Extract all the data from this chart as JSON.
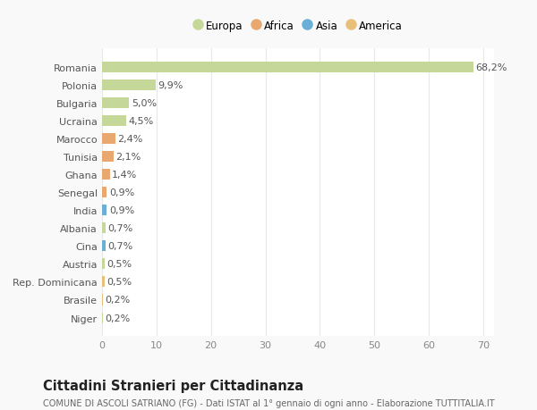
{
  "categories": [
    "Niger",
    "Brasile",
    "Rep. Dominicana",
    "Austria",
    "Cina",
    "Albania",
    "India",
    "Senegal",
    "Ghana",
    "Tunisia",
    "Marocco",
    "Ucraina",
    "Bulgaria",
    "Polonia",
    "Romania"
  ],
  "values": [
    0.2,
    0.2,
    0.5,
    0.5,
    0.7,
    0.7,
    0.9,
    0.9,
    1.4,
    2.1,
    2.4,
    4.5,
    5.0,
    9.9,
    68.2
  ],
  "labels": [
    "0,2%",
    "0,2%",
    "0,5%",
    "0,5%",
    "0,7%",
    "0,7%",
    "0,9%",
    "0,9%",
    "1,4%",
    "2,1%",
    "2,4%",
    "4,5%",
    "5,0%",
    "9,9%",
    "68,2%"
  ],
  "colors": [
    "#c5d89a",
    "#e8c07a",
    "#e8c07a",
    "#c5d89a",
    "#6baed6",
    "#c5d89a",
    "#6baed6",
    "#e8a870",
    "#e8a870",
    "#e8a870",
    "#e8a870",
    "#c5d89a",
    "#c5d89a",
    "#c5d89a",
    "#c5d89a"
  ],
  "legend_labels": [
    "Europa",
    "Africa",
    "Asia",
    "America"
  ],
  "legend_colors": [
    "#c5d89a",
    "#e8a870",
    "#6baed6",
    "#e8c07a"
  ],
  "title": "Cittadini Stranieri per Cittadinanza",
  "subtitle": "COMUNE DI ASCOLI SATRIANO (FG) - Dati ISTAT al 1° gennaio di ogni anno - Elaborazione TUTTITALIA.IT",
  "xlim": [
    0,
    72
  ],
  "xticks": [
    0,
    10,
    20,
    30,
    40,
    50,
    60,
    70
  ],
  "bg_color": "#f9f9f9",
  "plot_bg_color": "#ffffff",
  "grid_color": "#e8e8e8",
  "title_fontsize": 10.5,
  "subtitle_fontsize": 7.0,
  "label_fontsize": 8.0,
  "tick_fontsize": 8.0,
  "legend_fontsize": 8.5
}
